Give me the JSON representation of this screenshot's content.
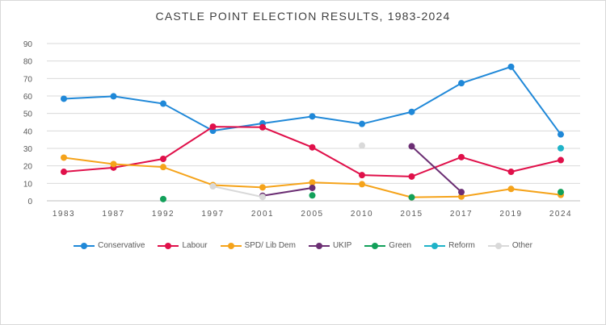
{
  "chart_data": {
    "type": "line",
    "title": "CASTLE POINT ELECTION RESULTS, 1983-2024",
    "xlabel": "",
    "ylabel": "",
    "categories": [
      "1983",
      "1987",
      "1992",
      "1997",
      "2001",
      "2005",
      "2010",
      "2015",
      "2017",
      "2019",
      "2024"
    ],
    "ylim": [
      0,
      90
    ],
    "yticks": [
      0,
      10,
      20,
      30,
      40,
      50,
      60,
      70,
      80,
      90
    ],
    "grid": true,
    "legend_position": "bottom",
    "series": [
      {
        "name": "Conservative",
        "color": "#1f88d8",
        "values": [
          58.4,
          59.8,
          55.6,
          40.1,
          44.3,
          48.3,
          44.0,
          50.9,
          67.3,
          76.7,
          38.0
        ]
      },
      {
        "name": "Labour",
        "color": "#e0104a",
        "values": [
          16.6,
          19.0,
          24.0,
          42.4,
          42.1,
          30.6,
          14.7,
          13.9,
          25.0,
          16.6,
          23.3
        ]
      },
      {
        "name": "SPD/ Lib Dem",
        "color": "#f5a31a",
        "values": [
          24.7,
          21.0,
          19.3,
          9.0,
          7.7,
          10.5,
          9.5,
          2.0,
          2.4,
          6.8,
          3.4
        ]
      },
      {
        "name": "UKIP",
        "color": "#6b2e73",
        "values": [
          null,
          null,
          null,
          null,
          2.9,
          7.4,
          null,
          31.2,
          5.0,
          null,
          null
        ]
      },
      {
        "name": "Green",
        "color": "#12a05a",
        "values": [
          null,
          null,
          1.0,
          null,
          null,
          3.1,
          null,
          2.0,
          null,
          null,
          5.0
        ]
      },
      {
        "name": "Reform",
        "color": "#1fb3c8",
        "values": [
          null,
          null,
          null,
          null,
          null,
          null,
          null,
          null,
          null,
          null,
          30.1
        ]
      },
      {
        "name": "Other",
        "color": "#d9d9d9",
        "values": [
          null,
          null,
          null,
          8.3,
          2.2,
          null,
          31.6,
          null,
          null,
          null,
          null
        ]
      }
    ]
  }
}
